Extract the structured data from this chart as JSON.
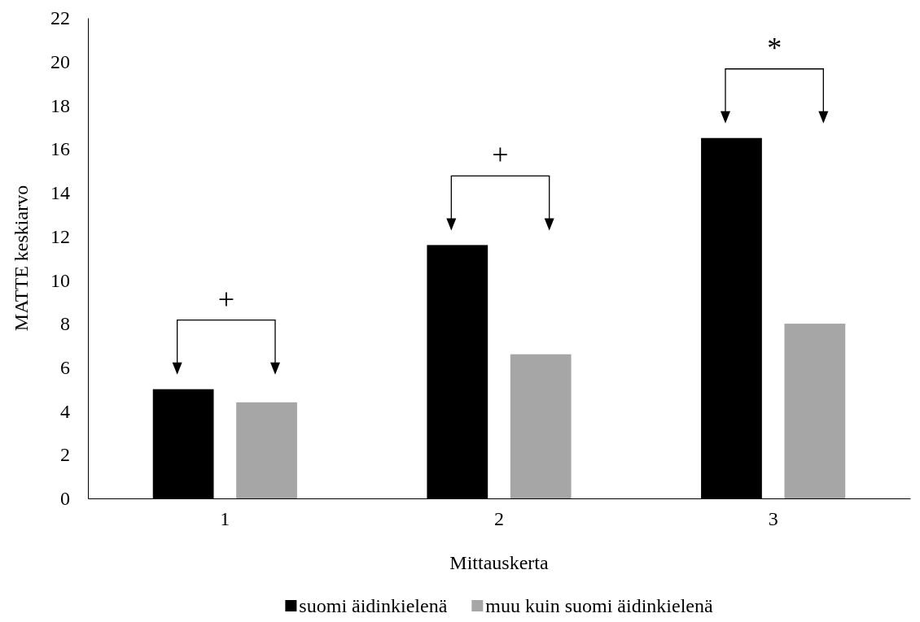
{
  "chart_data": {
    "type": "bar",
    "xlabel": "Mittauskerta",
    "ylabel": "MATTE keskiarvo",
    "categories": [
      "1",
      "2",
      "3"
    ],
    "series": [
      {
        "name": "suomi äidinkielenä",
        "color": "#000000",
        "values": [
          5.0,
          11.6,
          16.5
        ]
      },
      {
        "name": "muu kuin suomi äidinkielenä",
        "color": "#a6a6a6",
        "values": [
          4.4,
          6.6,
          8.0
        ]
      }
    ],
    "ylim": [
      0,
      22
    ],
    "yticks": [
      0,
      2,
      4,
      6,
      8,
      10,
      12,
      14,
      16,
      18,
      20,
      22
    ],
    "grid": false,
    "legend": "bottom",
    "annotations": [
      "+",
      "+",
      "*"
    ]
  }
}
